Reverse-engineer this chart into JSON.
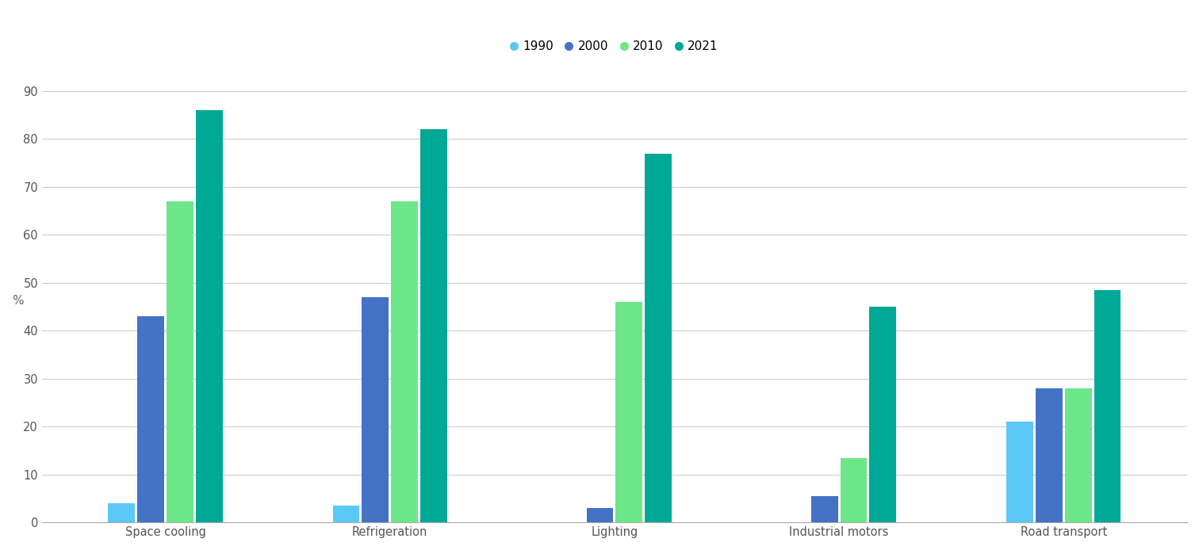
{
  "categories": [
    "Space cooling",
    "Refrigeration",
    "Lighting",
    "Industrial motors",
    "Road transport"
  ],
  "years": [
    "1990",
    "2000",
    "2010",
    "2021"
  ],
  "colors": [
    "#5BC8F5",
    "#4472C4",
    "#6EE68A",
    "#00A896"
  ],
  "values": {
    "Space cooling": [
      4,
      43,
      67,
      86
    ],
    "Refrigeration": [
      3.5,
      47,
      67,
      82
    ],
    "Lighting": [
      0,
      3,
      46,
      77
    ],
    "Industrial motors": [
      0,
      5.5,
      13.5,
      45
    ],
    "Road transport": [
      21,
      28,
      28,
      48.5
    ]
  },
  "ylabel": "%",
  "ylim": [
    0,
    95
  ],
  "yticks": [
    0,
    10,
    20,
    30,
    40,
    50,
    60,
    70,
    80,
    90
  ],
  "bar_width": 0.13,
  "background_color": "#ffffff",
  "grid_color": "#cccccc",
  "label_fontsize": 11,
  "tick_fontsize": 10.5
}
